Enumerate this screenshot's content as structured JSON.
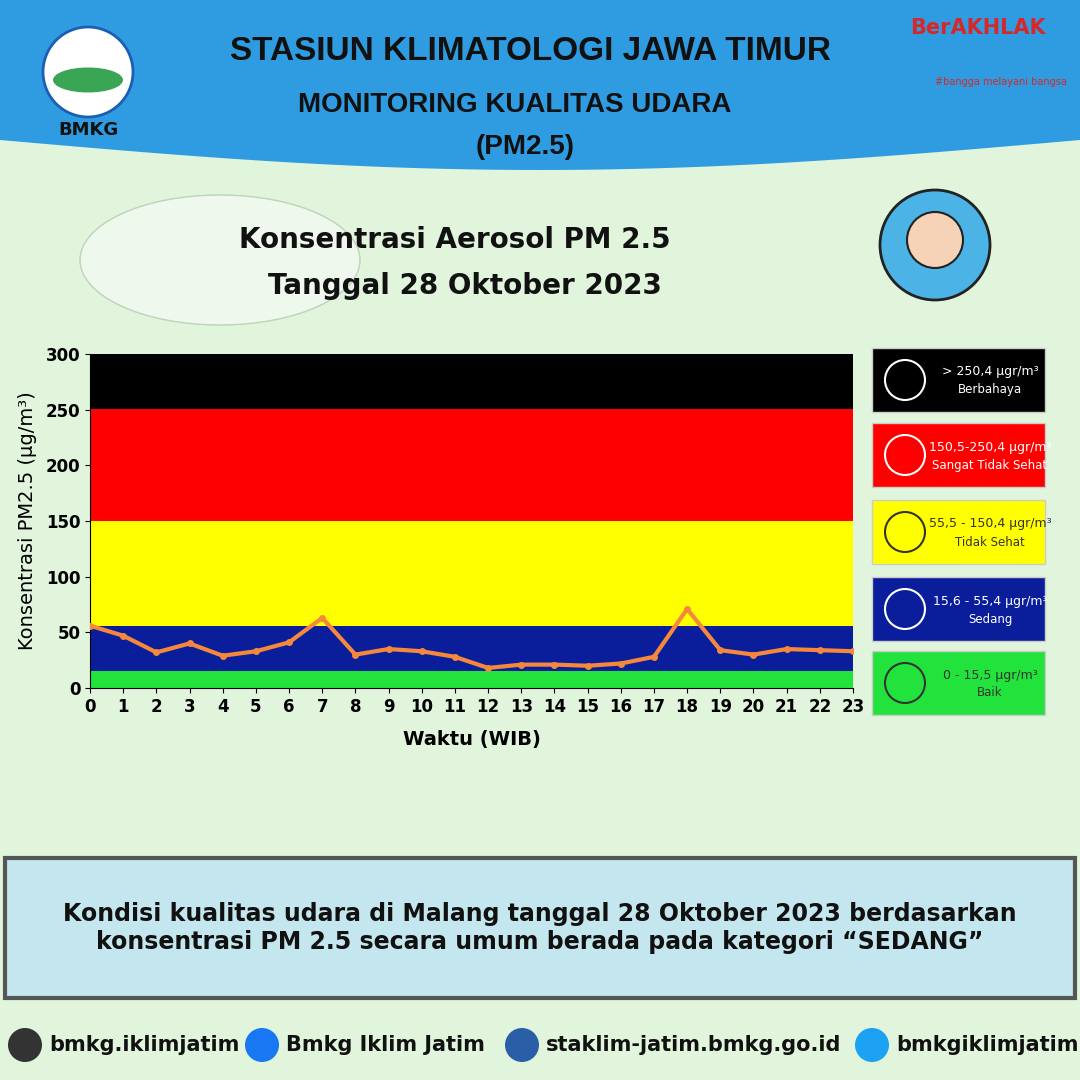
{
  "header": {
    "title": "STASIUN KLIMATOLOGI JAWA TIMUR",
    "subtitle": "MONITORING KUALITAS UDARA",
    "subtitle2": "(PM2.5)",
    "logo": "BMKG",
    "badge": "BerAKHLAK",
    "tagline": "#bangga melayani bangsa"
  },
  "chart_data": {
    "type": "line",
    "title": "Konsentrasi Aerosol PM 2.5",
    "subtitle": "Tanggal 28 Oktober 2023",
    "x_label": "Waktu (WIB)",
    "y_label": "Konsentrasi PM2.5 (µg/m³)",
    "x": [
      0,
      1,
      2,
      3,
      4,
      5,
      6,
      7,
      8,
      9,
      10,
      11,
      12,
      13,
      14,
      15,
      16,
      17,
      18,
      19,
      20,
      21,
      22,
      23
    ],
    "values": [
      56,
      47,
      32,
      40,
      29,
      33,
      41,
      63,
      30,
      35,
      33,
      28,
      18,
      21,
      21,
      20,
      22,
      28,
      71,
      34,
      30,
      35,
      34,
      33
    ],
    "color": "#f5883a",
    "marker": "o",
    "line_style": "solid",
    "xlim": [
      0,
      23
    ],
    "xticks": [
      0,
      1,
      2,
      3,
      4,
      5,
      6,
      7,
      8,
      9,
      10,
      11,
      12,
      13,
      14,
      15,
      16,
      17,
      18,
      19,
      20,
      21,
      22,
      23
    ],
    "ylim": [
      0,
      300
    ],
    "yticks": [
      0,
      50,
      100,
      150,
      200,
      250,
      300
    ],
    "grid": false,
    "bands": [
      {
        "lo": 250.4,
        "hi": 300,
        "color": "#000000",
        "range_label": "> 250,4 µgr/m³",
        "name": "Berbahaya"
      },
      {
        "lo": 150.4,
        "hi": 250.4,
        "color": "#ff0000",
        "range_label": "150,5-250,4 µgr/m³",
        "name": "Sangat Tidak Sehat"
      },
      {
        "lo": 55.4,
        "hi": 150.4,
        "color": "#ffff00",
        "range_label": "55,5 - 150,4 µgr/m³",
        "name": "Tidak Sehat"
      },
      {
        "lo": 15.5,
        "hi": 55.4,
        "color": "#0a1e9c",
        "range_label": "15,6 - 55,4 µgr/m³",
        "name": "Sedang"
      },
      {
        "lo": 0,
        "hi": 15.5,
        "color": "#22e33c",
        "range_label": "0 - 15,5 µgr/m³",
        "name": "Baik"
      }
    ]
  },
  "summary": "Kondisi kualitas udara di Malang tanggal 28 Oktober 2023 berdasarkan konsentrasi PM 2.5 secara umum berada pada kategori “SEDANG”",
  "footer": {
    "instagram": "bmkg.iklimjatim",
    "facebook": "Bmkg Iklim Jatim",
    "website": "staklim-jatim.bmkg.go.id",
    "twitter": "bmkgiklimjatim"
  }
}
